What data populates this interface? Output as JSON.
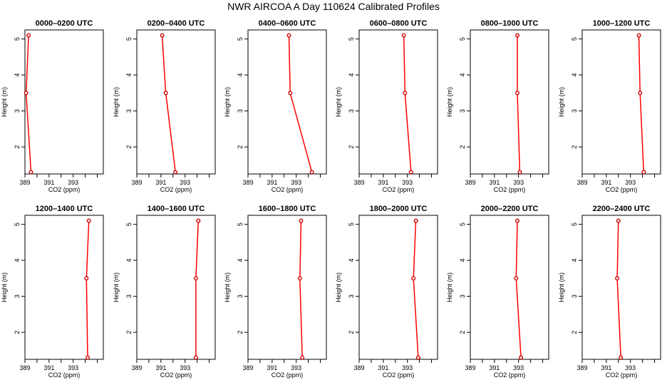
{
  "title": "NWR AIRCOA A  Day 110624  Calibrated Profiles",
  "colors": {
    "line": "#ff0000",
    "marker": "#cc0000",
    "axis": "#000000"
  },
  "chart_data": [
    {
      "type": "line",
      "title": "0000–0200 UTC",
      "xlabel": "CO2 (ppm)",
      "ylabel": "Height (m)",
      "xlim": [
        389,
        395.5
      ],
      "ylim": [
        1.25,
        5.25
      ],
      "xticks": [
        389,
        391,
        393
      ],
      "yticks": [
        2,
        3,
        4,
        5
      ],
      "grid": false,
      "series": [
        {
          "x": [
            389.3,
            389.1,
            389.5
          ],
          "y": [
            5.1,
            3.5,
            1.3
          ]
        }
      ]
    },
    {
      "type": "line",
      "title": "0200–0400 UTC",
      "xlabel": "CO2 (ppm)",
      "ylabel": "Height (m)",
      "xlim": [
        389,
        395.5
      ],
      "ylim": [
        1.25,
        5.25
      ],
      "xticks": [
        389,
        391,
        393
      ],
      "yticks": [
        2,
        3,
        4,
        5
      ],
      "grid": false,
      "series": [
        {
          "x": [
            391.1,
            391.4,
            392.2
          ],
          "y": [
            5.1,
            3.5,
            1.3
          ]
        }
      ]
    },
    {
      "type": "line",
      "title": "0400–0600 UTC",
      "xlabel": "CO2 (ppm)",
      "ylabel": "Height (m)",
      "xlim": [
        389,
        395.5
      ],
      "ylim": [
        1.25,
        5.25
      ],
      "xticks": [
        389,
        391,
        393
      ],
      "yticks": [
        2,
        3,
        4,
        5
      ],
      "grid": false,
      "series": [
        {
          "x": [
            392.4,
            392.5,
            394.3
          ],
          "y": [
            5.1,
            3.5,
            1.3
          ]
        }
      ]
    },
    {
      "type": "line",
      "title": "0600–0800 UTC",
      "xlabel": "CO2 (ppm)",
      "ylabel": "Height (m)",
      "xlim": [
        389,
        395.5
      ],
      "ylim": [
        1.25,
        5.25
      ],
      "xticks": [
        389,
        391,
        393
      ],
      "yticks": [
        2,
        3,
        4,
        5
      ],
      "grid": false,
      "series": [
        {
          "x": [
            392.7,
            392.8,
            393.3
          ],
          "y": [
            5.1,
            3.5,
            1.3
          ]
        }
      ]
    },
    {
      "type": "line",
      "title": "0800–1000 UTC",
      "xlabel": "CO2 (ppm)",
      "ylabel": "Height (m)",
      "xlim": [
        389,
        395.5
      ],
      "ylim": [
        1.25,
        5.25
      ],
      "xticks": [
        389,
        391,
        393
      ],
      "yticks": [
        2,
        3,
        4,
        5
      ],
      "grid": false,
      "series": [
        {
          "x": [
            392.9,
            392.9,
            393.1
          ],
          "y": [
            5.1,
            3.5,
            1.3
          ]
        }
      ]
    },
    {
      "type": "line",
      "title": "1000–1200 UTC",
      "xlabel": "CO2 (ppm)",
      "ylabel": "Height (m)",
      "xlim": [
        389,
        395.5
      ],
      "ylim": [
        1.25,
        5.25
      ],
      "xticks": [
        389,
        391,
        393
      ],
      "yticks": [
        2,
        3,
        4,
        5
      ],
      "grid": false,
      "series": [
        {
          "x": [
            393.7,
            393.8,
            394.1
          ],
          "y": [
            5.1,
            3.5,
            1.3
          ]
        }
      ]
    },
    {
      "type": "line",
      "title": "1200–1400 UTC",
      "xlabel": "CO2 (ppm)",
      "ylabel": "Height (m)",
      "xlim": [
        389,
        395.5
      ],
      "ylim": [
        1.25,
        5.25
      ],
      "xticks": [
        389,
        391,
        393
      ],
      "yticks": [
        2,
        3,
        4,
        5
      ],
      "grid": false,
      "series": [
        {
          "x": [
            394.3,
            394.1,
            394.2
          ],
          "y": [
            5.1,
            3.5,
            1.3
          ]
        }
      ]
    },
    {
      "type": "line",
      "title": "1400–1600 UTC",
      "xlabel": "CO2 (ppm)",
      "ylabel": "Height (m)",
      "xlim": [
        389,
        395.5
      ],
      "ylim": [
        1.25,
        5.25
      ],
      "xticks": [
        389,
        391,
        393
      ],
      "yticks": [
        2,
        3,
        4,
        5
      ],
      "grid": false,
      "series": [
        {
          "x": [
            394.1,
            393.9,
            393.9
          ],
          "y": [
            5.1,
            3.5,
            1.3
          ]
        }
      ]
    },
    {
      "type": "line",
      "title": "1600–1800 UTC",
      "xlabel": "CO2 (ppm)",
      "ylabel": "Height (m)",
      "xlim": [
        389,
        395.5
      ],
      "ylim": [
        1.25,
        5.25
      ],
      "xticks": [
        389,
        391,
        393
      ],
      "yticks": [
        2,
        3,
        4,
        5
      ],
      "grid": false,
      "series": [
        {
          "x": [
            393.4,
            393.3,
            393.5
          ],
          "y": [
            5.1,
            3.5,
            1.3
          ]
        }
      ]
    },
    {
      "type": "line",
      "title": "1800–2000 UTC",
      "xlabel": "CO2 (ppm)",
      "ylabel": "Height (m)",
      "xlim": [
        389,
        395.5
      ],
      "ylim": [
        1.25,
        5.25
      ],
      "xticks": [
        389,
        391,
        393
      ],
      "yticks": [
        2,
        3,
        4,
        5
      ],
      "grid": false,
      "series": [
        {
          "x": [
            393.7,
            393.5,
            393.9
          ],
          "y": [
            5.1,
            3.5,
            1.3
          ]
        }
      ]
    },
    {
      "type": "line",
      "title": "2000–2200 UTC",
      "xlabel": "CO2 (ppm)",
      "ylabel": "Height (m)",
      "xlim": [
        389,
        395.5
      ],
      "ylim": [
        1.25,
        5.25
      ],
      "xticks": [
        389,
        391,
        393
      ],
      "yticks": [
        2,
        3,
        4,
        5
      ],
      "grid": false,
      "series": [
        {
          "x": [
            392.9,
            392.8,
            393.2
          ],
          "y": [
            5.1,
            3.5,
            1.3
          ]
        }
      ]
    },
    {
      "type": "line",
      "title": "2200–2400 UTC",
      "xlabel": "CO2 (ppm)",
      "ylabel": "Height (m)",
      "xlim": [
        389,
        395.5
      ],
      "ylim": [
        1.25,
        5.25
      ],
      "xticks": [
        389,
        391,
        393
      ],
      "yticks": [
        2,
        3,
        4,
        5
      ],
      "grid": false,
      "series": [
        {
          "x": [
            392.0,
            391.9,
            392.2
          ],
          "y": [
            5.1,
            3.5,
            1.3
          ]
        }
      ]
    }
  ]
}
